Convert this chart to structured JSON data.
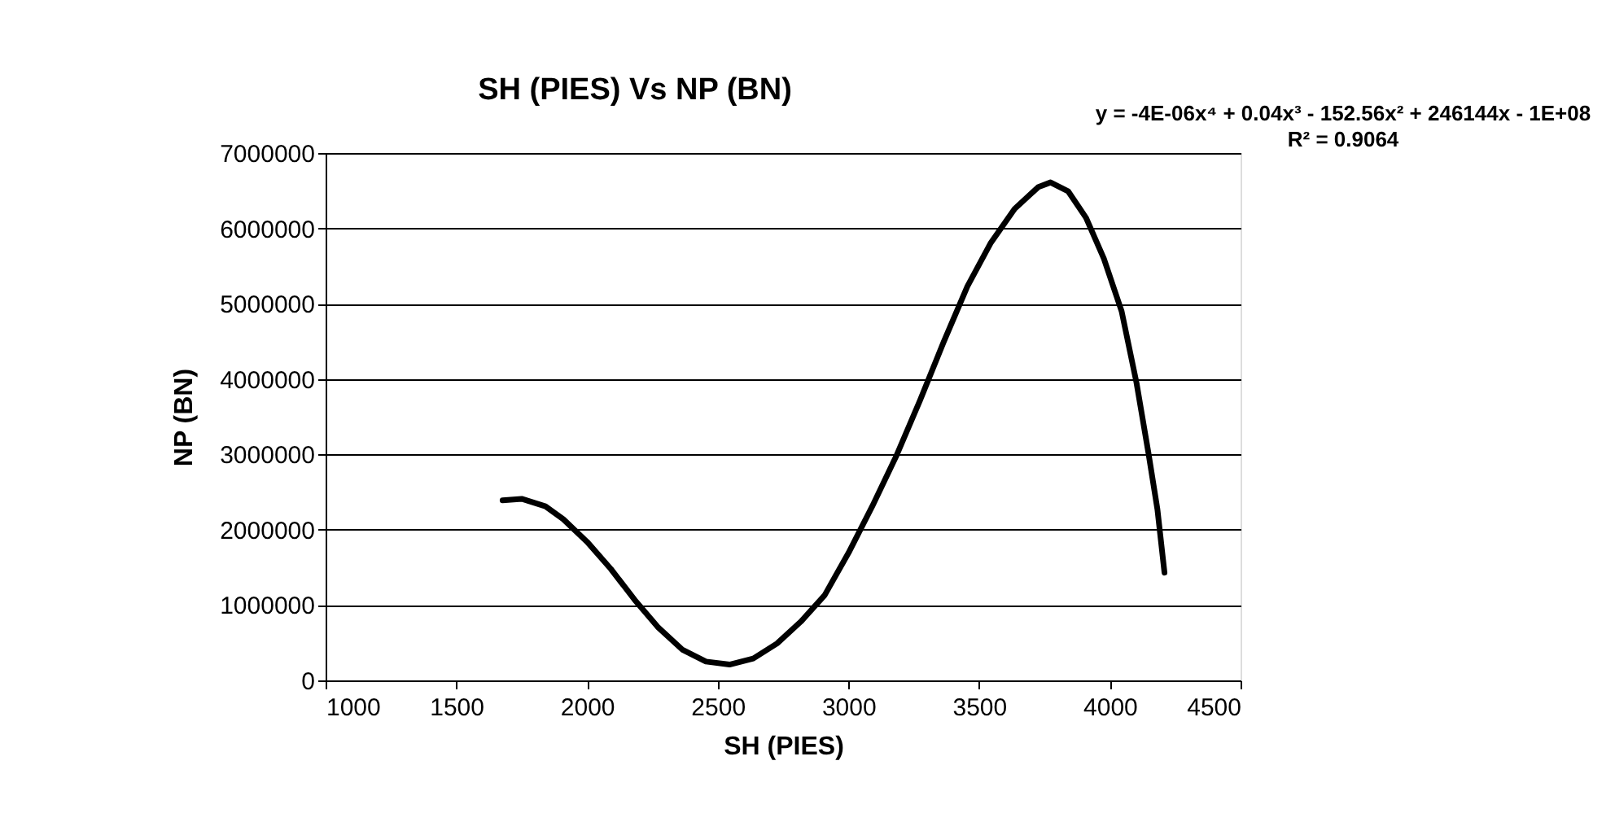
{
  "chart_data": {
    "type": "line",
    "title": "SH (PIES) Vs NP (BN)",
    "xlabel": "SH (PIES)",
    "ylabel": "NP (BN)",
    "annotations": [
      "y = -4E-06x⁴ + 0.04x³ - 152.56x² + 246144x - 1E+08",
      "R² = 0.9064"
    ],
    "x": [
      1677,
      1750,
      1841,
      1909,
      2000,
      2091,
      2182,
      2273,
      2364,
      2455,
      2545,
      2636,
      2727,
      2818,
      2909,
      3000,
      3091,
      3182,
      3273,
      3364,
      3455,
      3545,
      3636,
      3727,
      3773,
      3841,
      3909,
      3977,
      4045,
      4102,
      4148,
      4182,
      4209
    ],
    "series": [
      {
        "color": "#000000",
        "values": [
          2390000,
          2410000,
          2310000,
          2140000,
          1840000,
          1480000,
          1070000,
          700000,
          410000,
          250000,
          210000,
          290000,
          490000,
          780000,
          1130000,
          1690000,
          2310000,
          2970000,
          3710000,
          4490000,
          5230000,
          5810000,
          6260000,
          6550000,
          6610000,
          6490000,
          6140000,
          5600000,
          4900000,
          3950000,
          3010000,
          2270000,
          1430000
        ]
      }
    ],
    "xlim": [
      1000,
      4500
    ],
    "xticks": [
      1000,
      1500,
      2000,
      2500,
      3000,
      3500,
      4000,
      4500
    ],
    "ylim": [
      0,
      7000000
    ],
    "yticks": [
      0,
      1000000,
      2000000,
      3000000,
      4000000,
      5000000,
      6000000,
      7000000
    ],
    "grid": "y",
    "marker": "none",
    "line_style": "solid"
  }
}
